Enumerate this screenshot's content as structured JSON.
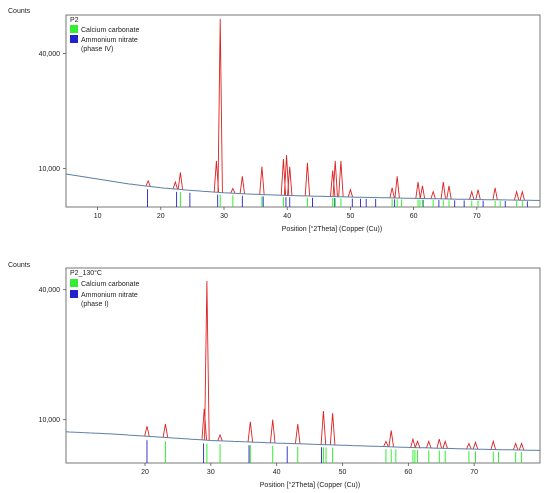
{
  "colors": {
    "calcium": "#33ee33",
    "ammonium": "#2222cc",
    "peak": "#dd2222",
    "background_line": "#5b7fa6"
  },
  "chart_data": [
    {
      "type": "line",
      "panel_label": "P2",
      "ylabel": "Counts",
      "xlabel": "Position [°2Theta] (Copper (Cu))",
      "xlim": [
        5,
        80
      ],
      "ylim": [
        0,
        50000
      ],
      "x_ticks": [
        10,
        20,
        30,
        40,
        50,
        60,
        70
      ],
      "y_ticks": [
        10000,
        40000
      ],
      "y_tick_labels": [
        "10,000",
        "40,000"
      ],
      "legend": [
        {
          "name": "Calcium carbonate",
          "color": "#33ee33"
        },
        {
          "name": "Ammonium nitrate",
          "sub": "(phase IV)",
          "color": "#2222cc"
        }
      ],
      "background": {
        "x": [
          5,
          10,
          15,
          20,
          25,
          30,
          35,
          40,
          50,
          60,
          70,
          80
        ],
        "y": [
          8600,
          7300,
          6000,
          5000,
          4300,
          3700,
          3300,
          3000,
          2600,
          2250,
          1950,
          1700
        ]
      },
      "peaks": [
        {
          "x": 18.0,
          "h": 6800
        },
        {
          "x": 22.3,
          "h": 6500
        },
        {
          "x": 23.1,
          "h": 9000
        },
        {
          "x": 28.8,
          "h": 12000
        },
        {
          "x": 29.4,
          "h": 49000
        },
        {
          "x": 31.4,
          "h": 4800
        },
        {
          "x": 32.9,
          "h": 8000
        },
        {
          "x": 36.0,
          "h": 10500
        },
        {
          "x": 39.4,
          "h": 12500
        },
        {
          "x": 39.9,
          "h": 13500
        },
        {
          "x": 40.4,
          "h": 10500
        },
        {
          "x": 43.2,
          "h": 11500
        },
        {
          "x": 47.2,
          "h": 9500
        },
        {
          "x": 47.6,
          "h": 12000
        },
        {
          "x": 48.5,
          "h": 12000
        },
        {
          "x": 50.0,
          "h": 4500
        },
        {
          "x": 56.6,
          "h": 5000
        },
        {
          "x": 57.4,
          "h": 8000
        },
        {
          "x": 60.7,
          "h": 6500
        },
        {
          "x": 61.4,
          "h": 5500
        },
        {
          "x": 63.1,
          "h": 4000
        },
        {
          "x": 64.7,
          "h": 6500
        },
        {
          "x": 65.6,
          "h": 5500
        },
        {
          "x": 69.2,
          "h": 4000
        },
        {
          "x": 70.2,
          "h": 4500
        },
        {
          "x": 72.9,
          "h": 5000
        },
        {
          "x": 76.3,
          "h": 4000
        },
        {
          "x": 77.2,
          "h": 4000
        }
      ],
      "ref_calcium": [
        23.1,
        29.4,
        31.4,
        36.0,
        39.4,
        43.2,
        47.2,
        47.6,
        48.5,
        56.6,
        57.4,
        58.1,
        60.7,
        61.0,
        61.4,
        63.1,
        64.7,
        65.6,
        69.2,
        70.2,
        72.9,
        73.7,
        76.3,
        77.2
      ],
      "ref_ammonium": [
        17.9,
        22.5,
        24.6,
        29.0,
        32.9,
        36.2,
        39.8,
        40.4,
        44.0,
        47.5,
        50.3,
        51.6,
        52.5,
        54.0,
        57.0,
        61.5,
        64.0,
        66.5,
        68.0,
        71.0,
        74.5,
        78.0
      ]
    },
    {
      "type": "line",
      "panel_label": "P2_130°C",
      "ylabel": "Counts",
      "xlabel": "Position [°2Theta] (Copper (Cu))",
      "xlim": [
        8,
        80
      ],
      "ylim": [
        0,
        45000
      ],
      "x_ticks": [
        20,
        30,
        40,
        50,
        60,
        70
      ],
      "y_ticks": [
        10000,
        40000
      ],
      "y_tick_labels": [
        "10,000",
        "40,000"
      ],
      "legend": [
        {
          "name": "Calcium carbonate",
          "color": "#33ee33"
        },
        {
          "name": "Ammonium nitrate",
          "sub": "(phase I)",
          "color": "#2222cc"
        }
      ],
      "background": {
        "x": [
          8,
          15,
          20,
          25,
          30,
          35,
          40,
          50,
          60,
          70,
          80
        ],
        "y": [
          7200,
          6700,
          6200,
          5700,
          5200,
          4900,
          4600,
          4100,
          3600,
          3200,
          2900
        ]
      },
      "peaks": [
        {
          "x": 20.3,
          "h": 8500
        },
        {
          "x": 23.1,
          "h": 9000
        },
        {
          "x": 29.0,
          "h": 12500
        },
        {
          "x": 29.4,
          "h": 42000
        },
        {
          "x": 31.4,
          "h": 6500
        },
        {
          "x": 36.0,
          "h": 9500
        },
        {
          "x": 39.4,
          "h": 10000
        },
        {
          "x": 43.2,
          "h": 9000
        },
        {
          "x": 47.1,
          "h": 12000
        },
        {
          "x": 48.5,
          "h": 11500
        },
        {
          "x": 56.6,
          "h": 5000
        },
        {
          "x": 57.4,
          "h": 7500
        },
        {
          "x": 60.7,
          "h": 5500
        },
        {
          "x": 61.4,
          "h": 5000
        },
        {
          "x": 63.1,
          "h": 5000
        },
        {
          "x": 64.7,
          "h": 5500
        },
        {
          "x": 65.6,
          "h": 5000
        },
        {
          "x": 69.2,
          "h": 4500
        },
        {
          "x": 70.2,
          "h": 4800
        },
        {
          "x": 72.9,
          "h": 5000
        },
        {
          "x": 76.3,
          "h": 4500
        },
        {
          "x": 77.2,
          "h": 4500
        }
      ],
      "ref_calcium": [
        23.1,
        29.4,
        31.4,
        36.0,
        39.4,
        43.2,
        47.1,
        47.5,
        48.5,
        56.6,
        57.4,
        58.1,
        60.7,
        61.0,
        61.4,
        63.1,
        64.7,
        65.6,
        69.2,
        70.2,
        72.9,
        73.7,
        76.3,
        77.2
      ],
      "ref_ammonium": [
        20.3,
        28.9,
        35.8,
        41.6,
        46.8
      ]
    }
  ]
}
